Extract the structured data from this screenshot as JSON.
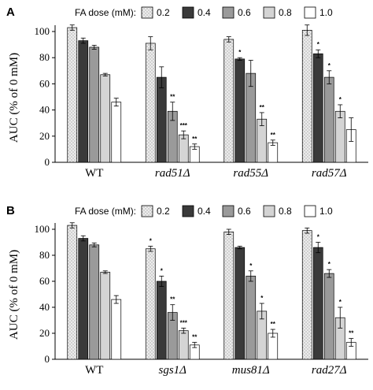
{
  "colors": {
    "0.2": "#e6e6e6",
    "0.4": "#3a3a3a",
    "0.6": "#9a9a9a",
    "0.8": "#d4d4d4",
    "1.0": "#ffffff"
  },
  "chart_data": [
    {
      "type": "bar",
      "panel": "A",
      "legend_title": "FA dose (mM):",
      "series_names": [
        "0.2",
        "0.4",
        "0.6",
        "0.8",
        "1.0"
      ],
      "categories": [
        "WT",
        "rad51Δ",
        "rad55Δ",
        "rad57Δ"
      ],
      "ylabel": "AUC (% of 0 mM)",
      "ylim": [
        0,
        100
      ],
      "yticks": [
        0,
        20,
        40,
        60,
        80,
        100
      ],
      "values": [
        [
          103,
          93,
          88,
          67,
          46
        ],
        [
          91,
          65,
          39,
          21,
          12
        ],
        [
          94,
          79,
          68,
          33,
          15
        ],
        [
          101,
          83,
          65,
          39,
          25
        ]
      ],
      "errors": [
        [
          2,
          2,
          1.5,
          1,
          3
        ],
        [
          5,
          8,
          7,
          3,
          2
        ],
        [
          2,
          1,
          10,
          5,
          2
        ],
        [
          4,
          3,
          5,
          5,
          9
        ]
      ],
      "annotations": [
        [
          "",
          "",
          "",
          "",
          ""
        ],
        [
          "",
          "",
          "**",
          "***",
          "**"
        ],
        [
          "",
          "*",
          "",
          "**",
          "**"
        ],
        [
          "",
          "*",
          "*",
          "*",
          ""
        ]
      ]
    },
    {
      "type": "bar",
      "panel": "B",
      "legend_title": "FA dose (mM):",
      "series_names": [
        "0.2",
        "0.4",
        "0.6",
        "0.8",
        "1.0"
      ],
      "categories": [
        "WT",
        "sgs1Δ",
        "mus81Δ",
        "rad27Δ"
      ],
      "ylabel": "AUC (% of 0 mM)",
      "ylim": [
        0,
        100
      ],
      "yticks": [
        0,
        20,
        40,
        60,
        80,
        100
      ],
      "values": [
        [
          103,
          93,
          88,
          67,
          46
        ],
        [
          85,
          60,
          36,
          22,
          11
        ],
        [
          98,
          86,
          64,
          37,
          20
        ],
        [
          99,
          86,
          66,
          32,
          13
        ]
      ],
      "errors": [
        [
          2,
          2,
          1.5,
          1,
          3
        ],
        [
          2,
          4,
          6,
          2,
          2
        ],
        [
          2,
          1,
          4,
          6,
          3
        ],
        [
          2,
          4,
          3,
          8,
          3
        ]
      ],
      "annotations": [
        [
          "",
          "",
          "",
          "",
          ""
        ],
        [
          "*",
          "*",
          "**",
          "***",
          "**"
        ],
        [
          "",
          "",
          "*",
          "*",
          "**"
        ],
        [
          "",
          "*",
          "*",
          "*",
          "**"
        ]
      ]
    }
  ]
}
